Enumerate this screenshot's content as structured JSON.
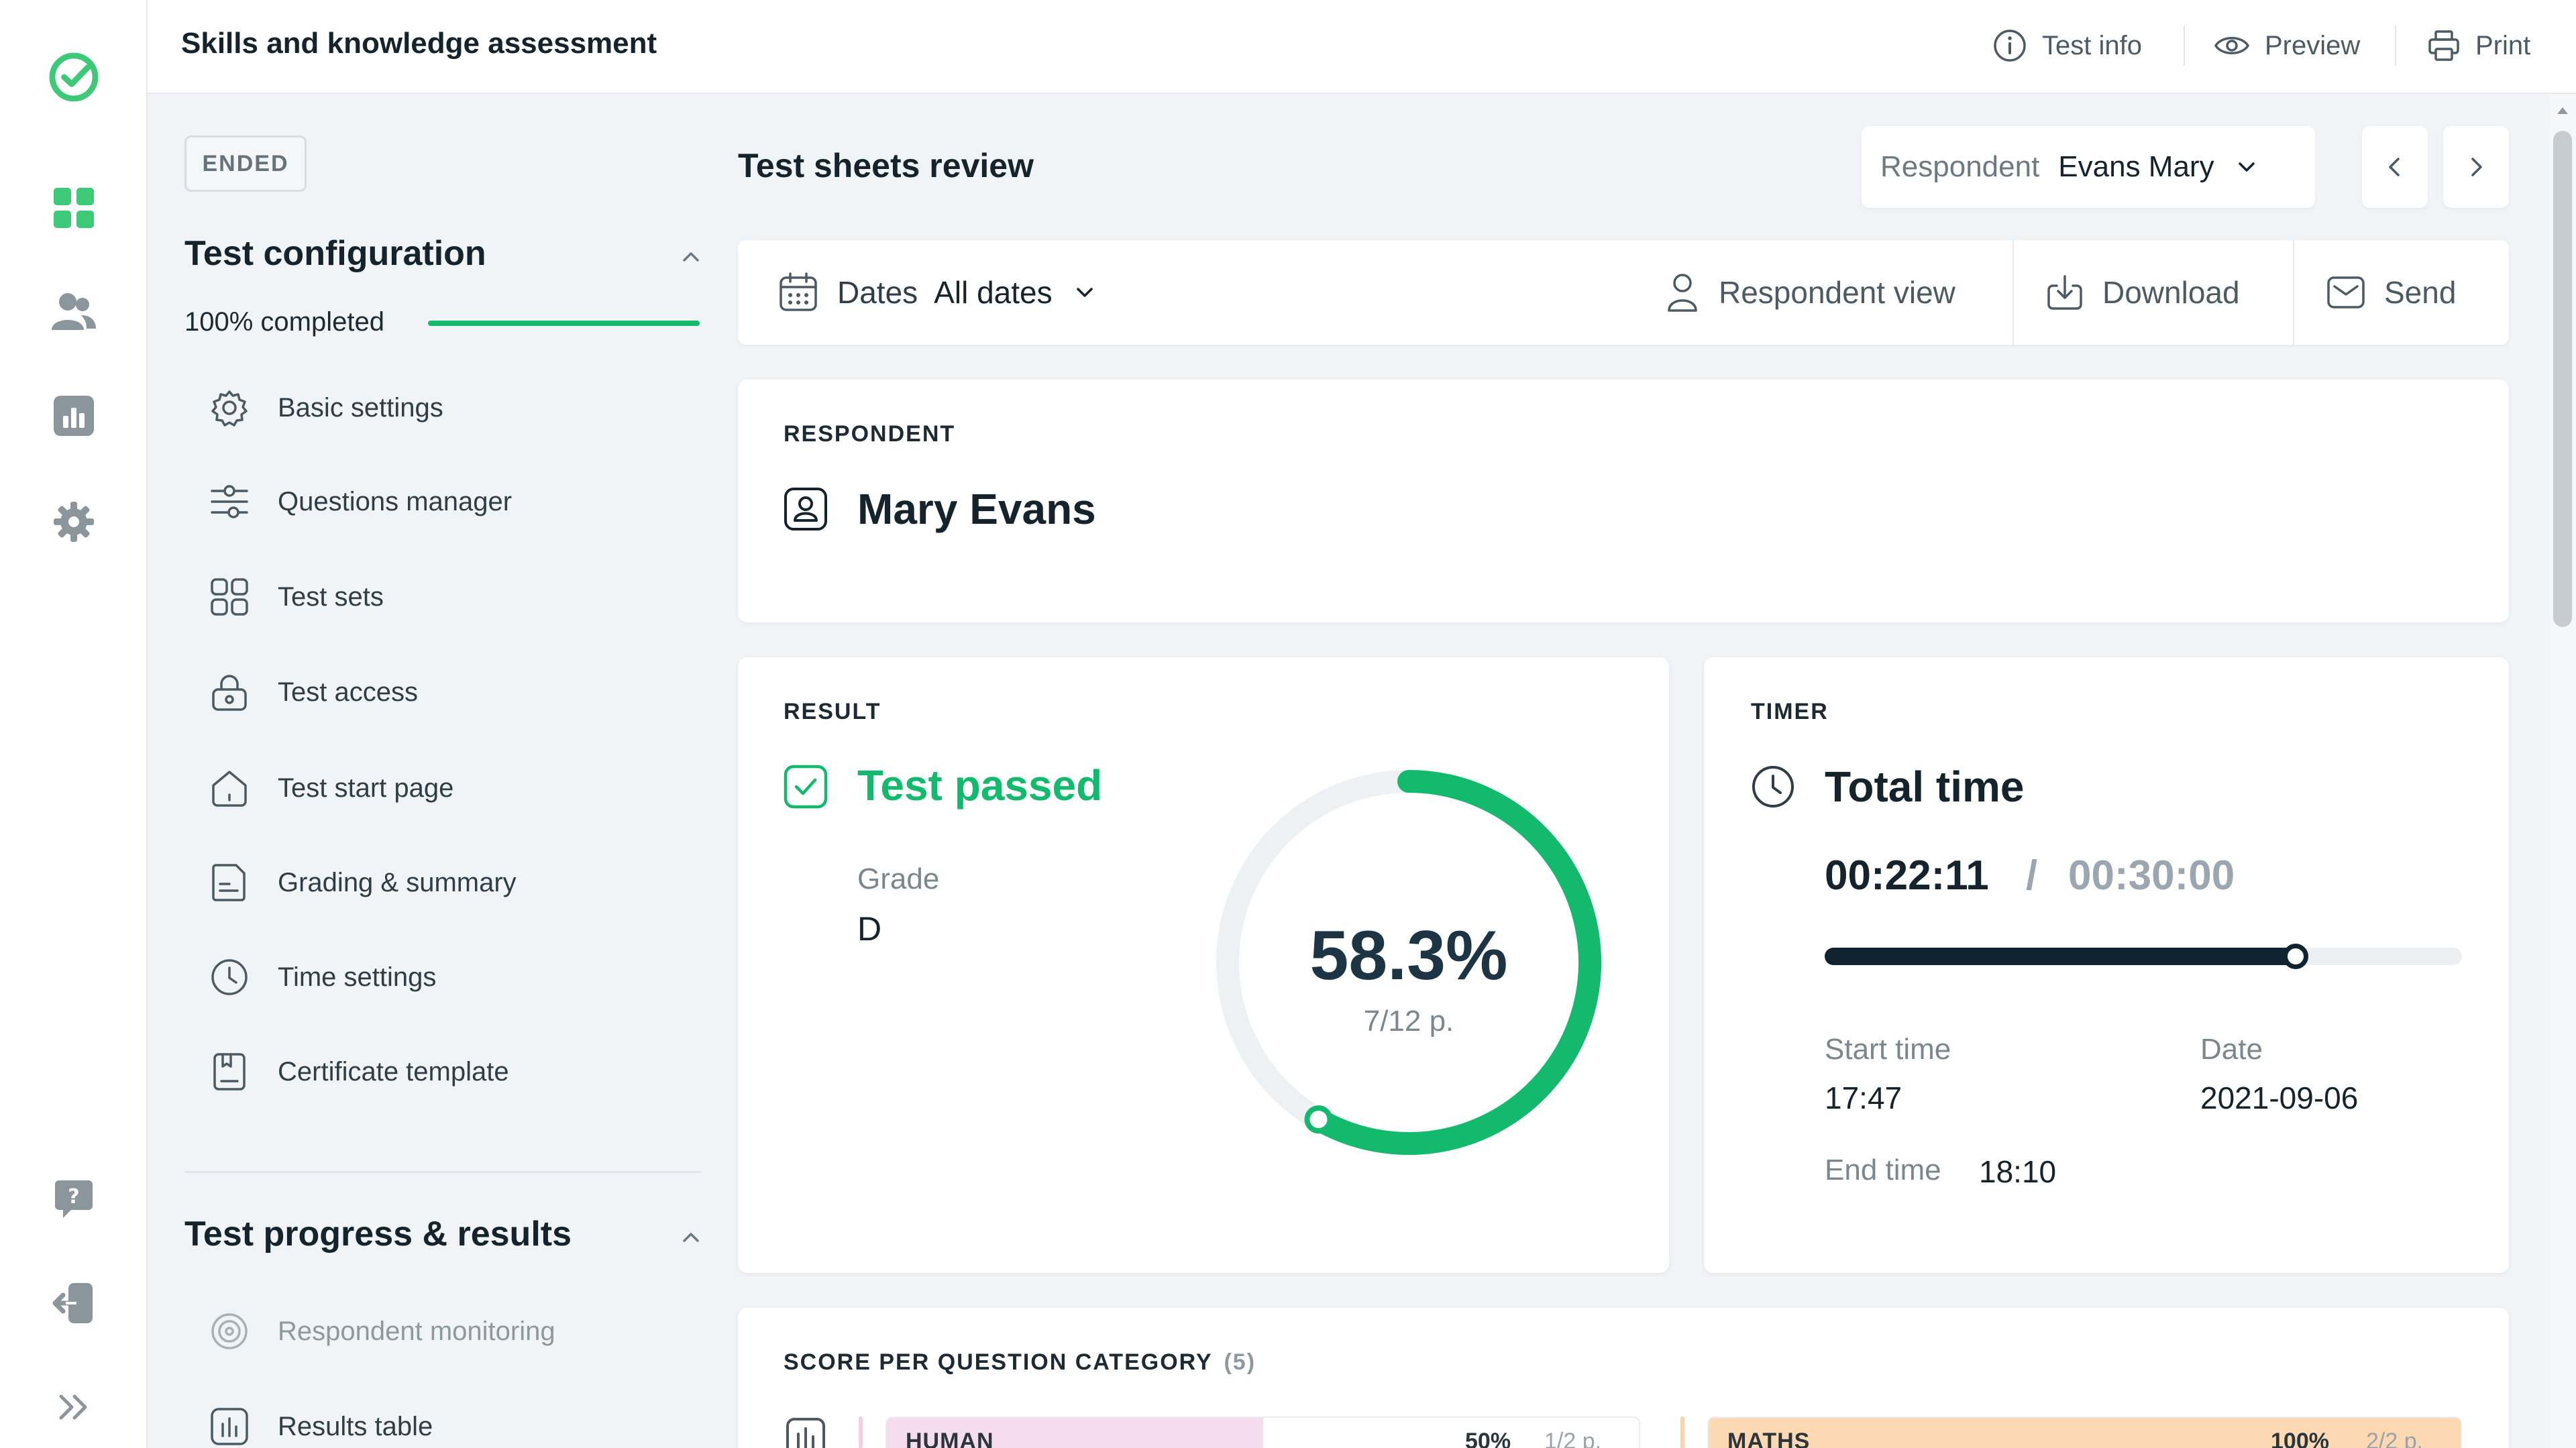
{
  "app": {
    "title": "Skills and knowledge assessment",
    "actions": {
      "test_info": "Test info",
      "preview": "Preview",
      "print": "Print"
    }
  },
  "rail": {
    "icons": [
      "logo-check-icon",
      "dashboard-grid-icon",
      "users-icon",
      "reports-chart-icon",
      "settings-gear-icon",
      "help-icon",
      "logout-icon",
      "expand-icon"
    ],
    "accent": "#3ec978"
  },
  "config": {
    "status_badge": "ENDED",
    "section_title": "Test configuration",
    "progress_label": "100% completed",
    "progress": 1.0,
    "items": [
      {
        "label": "Basic settings",
        "icon": "gear-icon"
      },
      {
        "label": "Questions manager",
        "icon": "sliders-icon"
      },
      {
        "label": "Test sets",
        "icon": "grid-icon"
      },
      {
        "label": "Test access",
        "icon": "lock-icon"
      },
      {
        "label": "Test start page",
        "icon": "home-icon"
      },
      {
        "label": "Grading & summary",
        "icon": "document-icon"
      },
      {
        "label": "Time settings",
        "icon": "clock-icon"
      },
      {
        "label": "Certificate template",
        "icon": "certificate-icon"
      }
    ]
  },
  "results_section": {
    "title": "Test progress & results",
    "items": [
      {
        "label": "Respondent monitoring",
        "icon": "monitoring-icon"
      },
      {
        "label": "Results table",
        "icon": "table-icon"
      }
    ]
  },
  "main": {
    "title": "Test sheets review",
    "respondent_select": {
      "label": "Respondent",
      "value": "Evans Mary"
    },
    "toolbar": {
      "dates_label": "Dates",
      "dates_value": "All dates",
      "respondent_view": "Respondent view",
      "download": "Download",
      "send": "Send"
    }
  },
  "respondent_card": {
    "label": "RESPONDENT",
    "name": "Mary Evans"
  },
  "result_card": {
    "label": "RESULT",
    "status": "Test passed",
    "grade_label": "Grade",
    "grade": "D",
    "percent_text": "58.3%",
    "points_text": "7/12 p.",
    "percent": 58.3,
    "colors": {
      "arc": "#13b96c",
      "track": "#eef1f4"
    }
  },
  "timer_card": {
    "label": "TIMER",
    "title": "Total time",
    "elapsed": "00:22:11",
    "separator": "/",
    "limit": "00:30:00",
    "progress": 0.7394,
    "start_label": "Start time",
    "start_value": "17:47",
    "date_label": "Date",
    "date_value": "2021-09-06",
    "end_label": "End time",
    "end_value": "18:10"
  },
  "category_card": {
    "label": "SCORE PER QUESTION CATEGORY",
    "count": "(5)",
    "categories": [
      {
        "name": "HUMAN",
        "percent_text": "50%",
        "points": "1/2 p.",
        "fraction": 0.5,
        "color": "#f6dcef"
      },
      {
        "name": "MATHS",
        "percent_text": "100%",
        "points": "2/2 p.",
        "fraction": 1.0,
        "color": "#fdd9b3"
      }
    ]
  }
}
